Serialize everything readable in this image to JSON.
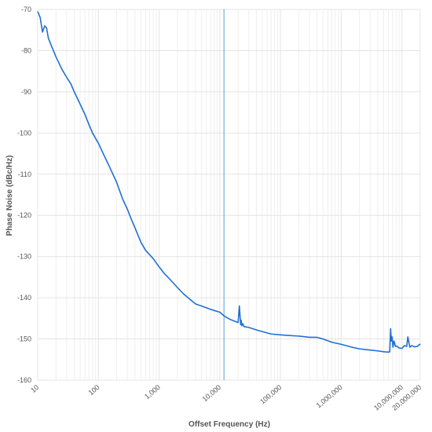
{
  "chart_data": {
    "type": "line",
    "title": "",
    "xlabel": "Offset Frequency (Hz)",
    "ylabel": "Phase Noise (dBc/Hz)",
    "x_scale": "log",
    "xlim": [
      10,
      20000000
    ],
    "ylim": [
      -160,
      -70
    ],
    "grid": true,
    "legend": "none",
    "line_color": "#1f6fd6",
    "marker_line_color": "#5b9bd5",
    "grid_color": "#e4e4e4",
    "minor_grid_color": "#efefef",
    "marker_x": 11700,
    "x_ticks": [
      {
        "value": 10,
        "label": "10"
      },
      {
        "value": 100,
        "label": "100"
      },
      {
        "value": 1000,
        "label": "1,000"
      },
      {
        "value": 10000,
        "label": "10,000"
      },
      {
        "value": 100000,
        "label": "100,000"
      },
      {
        "value": 1000000,
        "label": "1,000,000"
      },
      {
        "value": 10000000,
        "label": "10,000,000"
      },
      {
        "value": 20000000,
        "label": "20,000,000"
      }
    ],
    "y_ticks": [
      {
        "value": -70,
        "label": "-70"
      },
      {
        "value": -80,
        "label": "-80"
      },
      {
        "value": -90,
        "label": "-90"
      },
      {
        "value": -100,
        "label": "-100"
      },
      {
        "value": -110,
        "label": "-110"
      },
      {
        "value": -120,
        "label": "-120"
      },
      {
        "value": -130,
        "label": "-130"
      },
      {
        "value": -140,
        "label": "-140"
      },
      {
        "value": -150,
        "label": "-150"
      },
      {
        "value": -160,
        "label": "-160"
      }
    ],
    "series": [
      {
        "x": [
          10,
          11,
          12,
          13,
          14,
          15,
          17,
          20,
          25,
          30,
          35,
          40,
          50,
          60,
          70,
          80,
          100,
          120,
          150,
          200,
          250,
          300,
          350,
          400,
          500,
          600,
          800,
          1000,
          1200,
          1500,
          2000,
          2500,
          3000,
          4000,
          5000,
          7000,
          10000,
          12000,
          15000,
          20000,
          21000,
          22000,
          22500,
          23000,
          24000,
          25000,
          30000,
          40000,
          50000,
          70000,
          100000,
          150000,
          200000,
          300000,
          400000,
          500000,
          700000,
          1000000,
          1500000,
          2000000,
          3000000,
          4000000,
          5000000,
          6000000,
          6300000,
          6500000,
          6700000,
          6900000,
          7100000,
          7400000,
          7800000,
          8200000,
          9000000,
          10000000,
          11000000,
          12000000,
          12500000,
          13000000,
          13500000,
          14500000,
          16000000,
          18000000,
          20000000
        ],
        "y": [
          -70.5,
          -72,
          -75.5,
          -74,
          -74.5,
          -77,
          -79,
          -81.5,
          -84.5,
          -86.5,
          -88,
          -90,
          -93,
          -95.5,
          -98,
          -100,
          -102.5,
          -105,
          -108,
          -112,
          -116,
          -118.5,
          -121,
          -123,
          -126.5,
          -128.5,
          -130.5,
          -132.5,
          -134,
          -135.5,
          -137.5,
          -139,
          -140,
          -141.5,
          -142,
          -142.8,
          -143.5,
          -144.5,
          -145.3,
          -146,
          -142,
          -146.5,
          -145.5,
          -146.8,
          -146.3,
          -147,
          -147.2,
          -147.8,
          -148.2,
          -148.8,
          -149,
          -149.2,
          -149.3,
          -149.6,
          -149.6,
          -150,
          -150.8,
          -151.3,
          -152,
          -152.4,
          -152.7,
          -152.9,
          -153.1,
          -153.2,
          -153.1,
          -147.5,
          -150.5,
          -149.5,
          -152,
          -150.5,
          -151.8,
          -151.7,
          -152.2,
          -152.3,
          -151.6,
          -151.8,
          -149.5,
          -150.8,
          -152,
          -151.6,
          -151.9,
          -151.8,
          -151.2
        ]
      }
    ]
  }
}
